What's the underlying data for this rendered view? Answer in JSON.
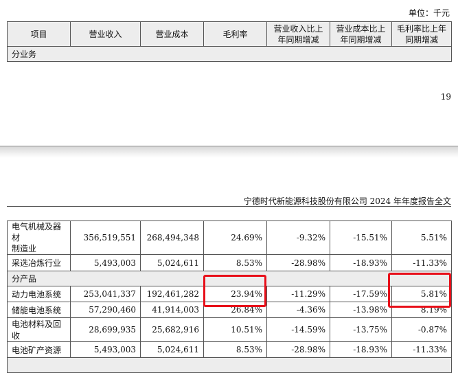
{
  "unit_label": "单位：千元",
  "header": {
    "cols": [
      "项目",
      "营业收入",
      "营业成本",
      "毛利率",
      "营业收入比上年同期增减",
      "营业成本比上年同期增减",
      "毛利率比上年同期增减"
    ],
    "col4_l1": "营业收入比上",
    "col4_l2": "年同期增减",
    "col5_l1": "营业成本比上",
    "col5_l2": "年同期增减",
    "col6_l1": "毛利率比上年",
    "col6_l2": "同期增减"
  },
  "section_business": "分业务",
  "page_number": "19",
  "doc_title": "宁德时代新能源科技股份有限公司 2024 年年度报告全文",
  "industry_rows": [
    {
      "name_l1": "电气机械及器材",
      "name_l2": "制造业",
      "revenue": "356,519,551",
      "cost": "268,494,348",
      "margin": "24.69%",
      "rev_chg": "-9.32%",
      "cost_chg": "-15.51%",
      "margin_chg": "5.51%"
    },
    {
      "name": "采选冶炼行业",
      "revenue": "5,493,003",
      "cost": "5,024,611",
      "margin": "8.53%",
      "rev_chg": "-28.98%",
      "cost_chg": "-18.93%",
      "margin_chg": "-11.33%"
    }
  ],
  "section_product": "分产品",
  "product_rows": [
    {
      "name": "动力电池系统",
      "revenue": "253,041,337",
      "cost": "192,461,282",
      "margin": "23.94%",
      "rev_chg": "-11.29%",
      "cost_chg": "-17.59%",
      "margin_chg": "5.81%"
    },
    {
      "name": "储能电池系统",
      "revenue": "57,290,460",
      "cost": "41,914,003",
      "margin": "26.84%",
      "rev_chg": "-4.36%",
      "cost_chg": "-13.98%",
      "margin_chg": "8.19%"
    },
    {
      "name": "电池材料及回收",
      "revenue": "28,699,935",
      "cost": "25,682,916",
      "margin": "10.51%",
      "rev_chg": "-14.59%",
      "cost_chg": "-13.75%",
      "margin_chg": "-0.87%"
    },
    {
      "name": "电池矿产资源",
      "revenue": "5,493,003",
      "cost": "5,024,611",
      "margin": "8.53%",
      "rev_chg": "-28.98%",
      "cost_chg": "-18.93%",
      "margin_chg": "-11.33%"
    }
  ],
  "colors": {
    "highlight": "#e8101a",
    "shade": "#ededed"
  }
}
